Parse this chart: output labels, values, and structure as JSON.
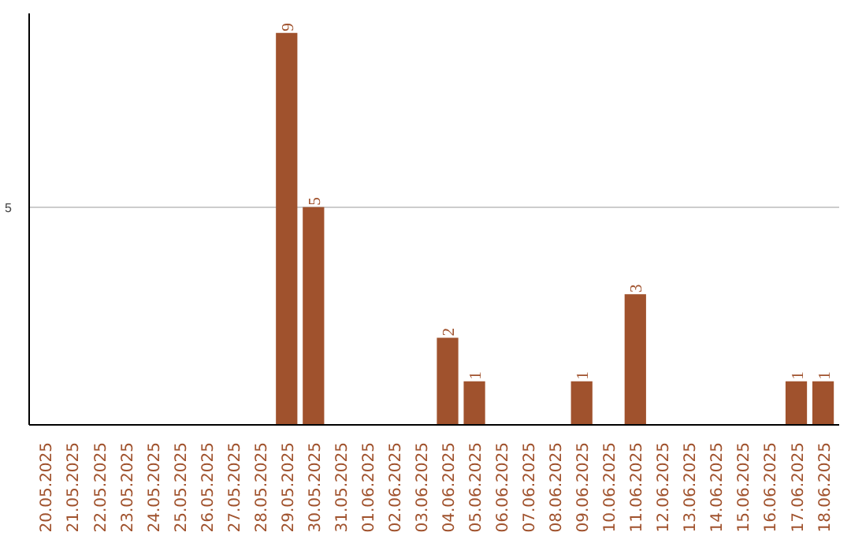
{
  "chart_data": {
    "type": "bar",
    "categories": [
      "20.05.2025",
      "21.05.2025",
      "22.05.2025",
      "23.05.2025",
      "24.05.2025",
      "25.05.2025",
      "26.05.2025",
      "27.05.2025",
      "28.05.2025",
      "29.05.2025",
      "30.05.2025",
      "31.05.2025",
      "01.06.2025",
      "02.06.2025",
      "03.06.2025",
      "04.06.2025",
      "05.06.2025",
      "06.06.2025",
      "07.06.2025",
      "08.06.2025",
      "09.06.2025",
      "10.06.2025",
      "11.06.2025",
      "12.06.2025",
      "13.06.2025",
      "14.06.2025",
      "15.06.2025",
      "16.06.2025",
      "17.06.2025",
      "18.06.2025"
    ],
    "values": [
      0,
      0,
      0,
      0,
      0,
      0,
      0,
      0,
      0,
      9,
      5,
      0,
      0,
      0,
      0,
      2,
      1,
      0,
      0,
      0,
      1,
      0,
      3,
      0,
      0,
      0,
      0,
      0,
      1,
      1
    ],
    "value_labels": [
      null,
      null,
      null,
      null,
      null,
      null,
      null,
      null,
      null,
      "9",
      "5",
      null,
      null,
      null,
      null,
      "2",
      "1",
      null,
      null,
      null,
      "1",
      null,
      "3",
      null,
      null,
      null,
      null,
      null,
      "1",
      "1"
    ],
    "color": "#a0522d",
    "ylim": [
      0,
      9.45
    ],
    "yticks": [
      5
    ],
    "grid": "y"
  }
}
